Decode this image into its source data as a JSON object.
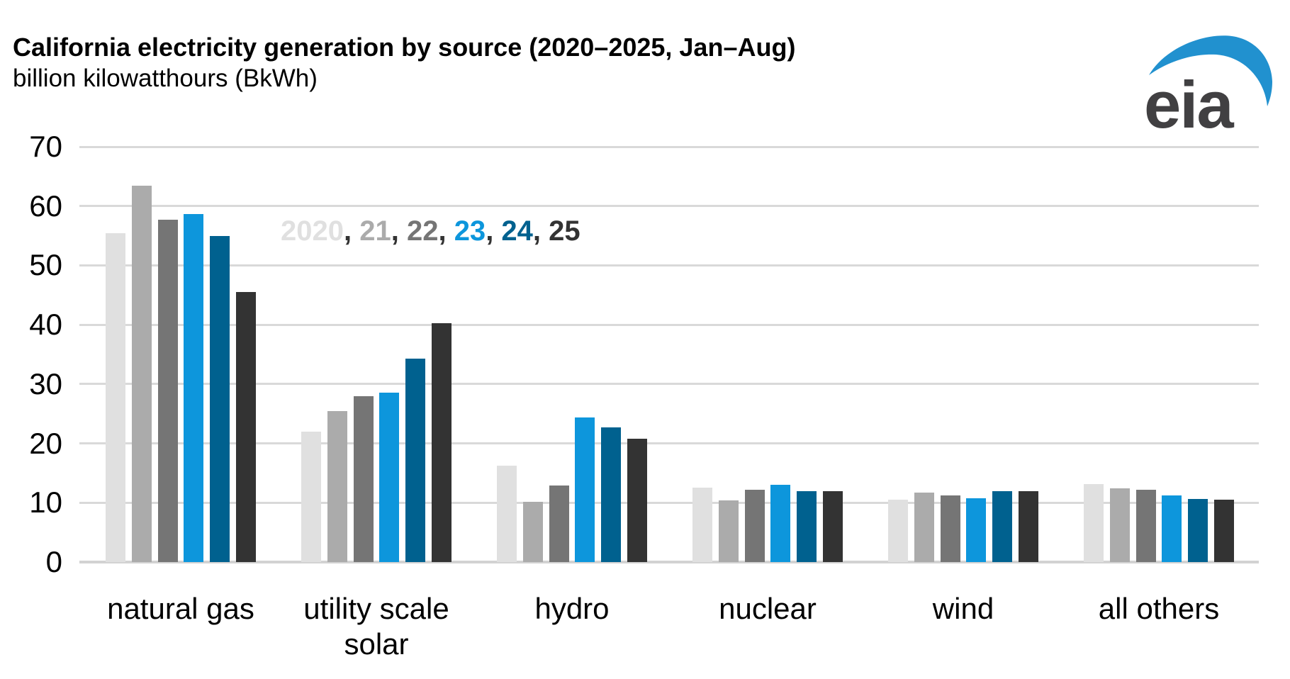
{
  "header": {
    "title": "California electricity generation by source (2020–2025, Jan–Aug)",
    "subtitle": "billion kilowatthours (BkWh)"
  },
  "logo": {
    "text": "eia"
  },
  "colors": {
    "grid": "#d9d9d9",
    "baseline": "#d2d2d2",
    "axis_text": "#000000",
    "legend_separator": "#333333",
    "logo_swoosh": "#2191cf",
    "logo_text": "#414042"
  },
  "legend": {
    "separator": ", "
  },
  "chart_data": {
    "type": "bar",
    "title": "California electricity generation by source (2020–2025, Jan–Aug)",
    "ylabel": "billion kilowatthours (BkWh)",
    "xlabel": "",
    "categories": [
      "natural gas",
      "utility scale solar",
      "hydro",
      "nuclear",
      "wind",
      "all others"
    ],
    "category_label_lines": [
      [
        "natural gas"
      ],
      [
        "utility scale",
        "solar"
      ],
      [
        "hydro"
      ],
      [
        "nuclear"
      ],
      [
        "wind"
      ],
      [
        "all others"
      ]
    ],
    "series": [
      {
        "name": "2020",
        "color": "#e0e0e0",
        "values": [
          55.4,
          22.0,
          16.3,
          12.6,
          10.5,
          13.1
        ]
      },
      {
        "name": "21",
        "color": "#ababab",
        "values": [
          63.4,
          25.5,
          10.2,
          10.4,
          11.7,
          12.4
        ]
      },
      {
        "name": "22",
        "color": "#757575",
        "values": [
          57.7,
          28.0,
          12.9,
          12.2,
          11.2,
          12.2
        ]
      },
      {
        "name": "23",
        "color": "#0d96dc",
        "values": [
          58.6,
          28.5,
          24.4,
          13.0,
          10.7,
          11.2
        ]
      },
      {
        "name": "24",
        "color": "#00618f",
        "values": [
          55.0,
          34.3,
          22.7,
          12.0,
          11.9,
          10.6
        ]
      },
      {
        "name": "25",
        "color": "#333333",
        "values": [
          45.5,
          40.3,
          20.8,
          11.9,
          11.9,
          10.5
        ]
      }
    ],
    "legend_labels": [
      "2020",
      "21",
      "22",
      "23",
      "24",
      "25"
    ],
    "ylim": [
      0,
      70
    ],
    "yticks": [
      0,
      10,
      20,
      30,
      40,
      50,
      60,
      70
    ],
    "grid": true,
    "legend_position": "inside-top-left"
  }
}
